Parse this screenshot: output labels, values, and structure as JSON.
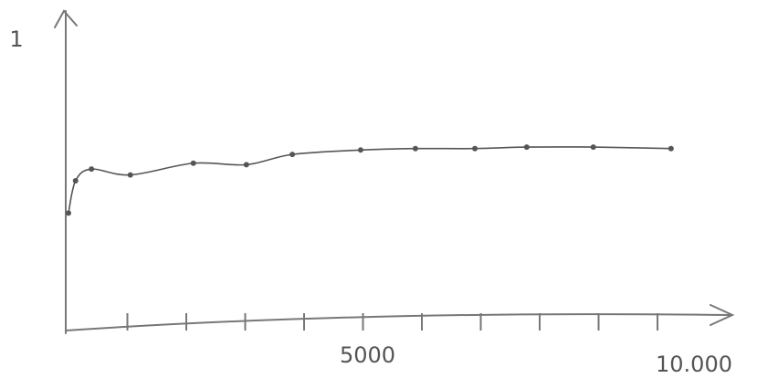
{
  "chart_data": {
    "type": "line",
    "x": [
      0,
      120,
      390,
      1050,
      2120,
      3020,
      3800,
      4960,
      5890,
      6900,
      7780,
      8910,
      10230
    ],
    "series": [
      {
        "color": "#555555",
        "values": [
          0.41,
          0.52,
          0.56,
          0.54,
          0.58,
          0.575,
          0.61,
          0.625,
          0.63,
          0.63,
          0.635,
          0.635,
          0.63
        ]
      }
    ],
    "xlim": [
      0,
      11240
    ],
    "ylim": [
      0,
      1.09
    ],
    "xticks": [
      5000,
      {
        "value": 10000,
        "label": "10.000"
      }
    ],
    "xminor": [
      1000,
      2000,
      3000,
      4000,
      5000,
      6000,
      7000,
      8000,
      9000,
      10000
    ],
    "yticks": [
      1
    ]
  }
}
